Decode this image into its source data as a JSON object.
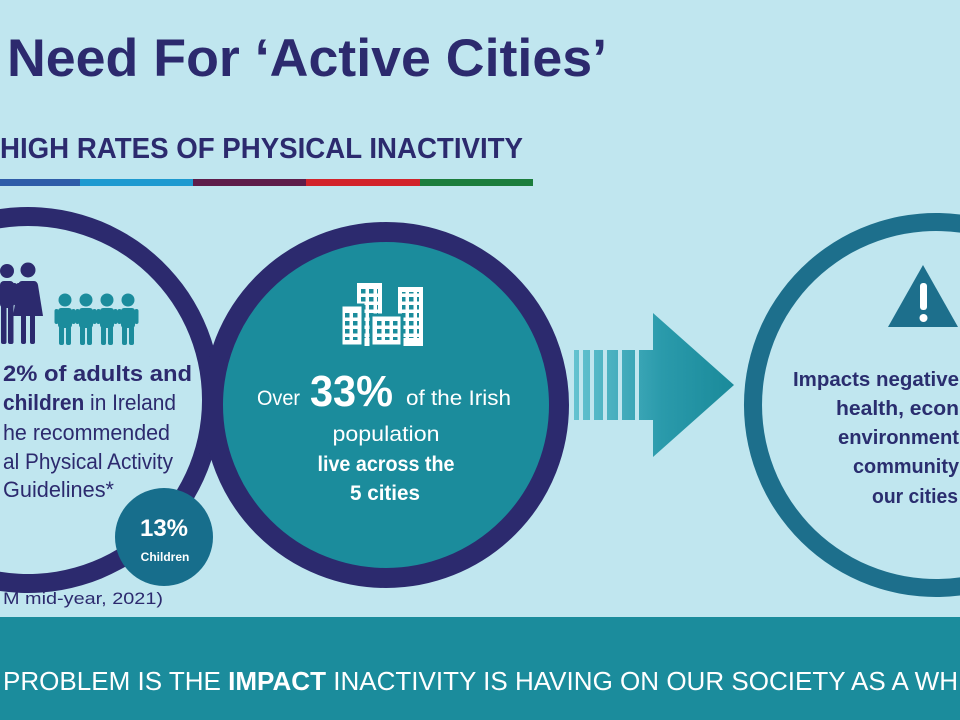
{
  "slide": {
    "title": "Need For ‘Active Cities’",
    "subtitle": "HIGH RATES OF PHYSICAL INACTIVITY"
  },
  "colors": {
    "background": "#c0e6ef",
    "navy": "#2c2a6e",
    "teal": "#1b8c9c",
    "badge": "#176e8c",
    "right_ring": "#1d6f8c",
    "accent_bar": [
      "#2e5ca8",
      "#1d9ad0",
      "#5e1d4a",
      "#d2232a",
      "#1b7d3c"
    ]
  },
  "left_circle": {
    "icons": [
      "family-icon",
      "children-icon"
    ],
    "lines": [
      {
        "bold": "2% of adults and"
      },
      {
        "bold": "children",
        "regular": " in Ireland"
      },
      {
        "regular": "he recommended"
      },
      {
        "regular": "al Physical Activity"
      },
      {
        "regular": "Guidelines*"
      }
    ],
    "footnote": "M mid-year, 2021)",
    "badge": {
      "value": "13%",
      "label": "Children"
    }
  },
  "middle_circle": {
    "icon": "buildings-icon",
    "lead": "Over",
    "stat": "33%",
    "stat_rest": "of the Irish",
    "lines": [
      "population",
      "live across the",
      "5 cities"
    ]
  },
  "arrow": {
    "icon": "right-arrow-icon"
  },
  "right_circle": {
    "icon": "warning-icon",
    "lines": [
      "Impacts negative",
      "health, econ",
      "environment",
      "community",
      "our cities"
    ]
  },
  "banner": {
    "pre": "PROBLEM IS THE ",
    "bold": "IMPACT",
    "post": " INACTIVITY IS HAVING ON OUR SOCIETY AS A WH"
  }
}
